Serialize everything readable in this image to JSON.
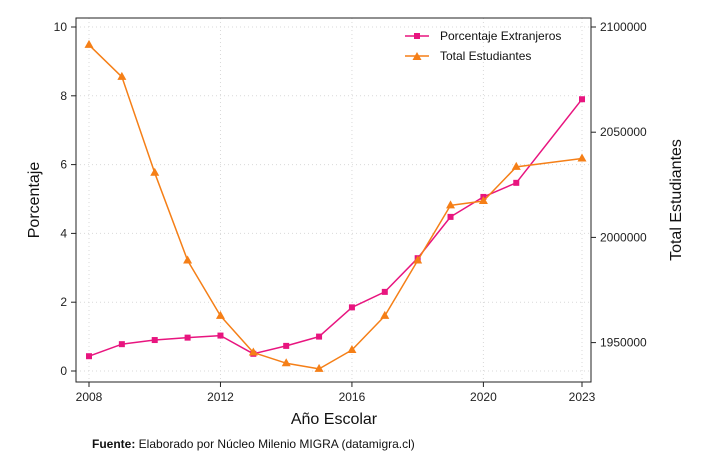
{
  "chart_data": {
    "type": "line",
    "xlabel": "Año Escolar",
    "ylabel": "Porcentaje",
    "y2label": "Total Estudiantes",
    "x_ticks": [
      "2008",
      "2012",
      "2016",
      "2020",
      "2023"
    ],
    "y_ticks": [
      "0",
      "2",
      "4",
      "6",
      "8",
      "10"
    ],
    "y2_ticks": [
      "1950000",
      "2000000",
      "2050000",
      "2100000"
    ],
    "xlim": [
      2008,
      2023
    ],
    "ylim": [
      0,
      10
    ],
    "y2lim": [
      1936500,
      2100000
    ],
    "grid": true,
    "legend_position": "top-right",
    "x": [
      2008,
      2009,
      2010,
      2011,
      2012,
      2013,
      2014,
      2015,
      2016,
      2017,
      2018,
      2019,
      2020,
      2021,
      2023
    ],
    "series": [
      {
        "name": "Porcentaje Extranjeros",
        "axis": "left",
        "color": "#e8157f",
        "marker": "square",
        "values": [
          0.43,
          0.78,
          0.9,
          0.97,
          1.03,
          0.5,
          0.73,
          1.0,
          1.85,
          2.3,
          3.28,
          4.48,
          5.06,
          5.47,
          7.9
        ]
      },
      {
        "name": "Total Estudiantes",
        "axis": "right",
        "color": "#f57f17",
        "marker": "triangle",
        "values": [
          2091500,
          2076300,
          2030700,
          1989000,
          1962700,
          1945300,
          1940200,
          1937500,
          1946500,
          1962700,
          1989000,
          2015200,
          2017300,
          2033500,
          2037500
        ]
      }
    ]
  },
  "source": {
    "label": "Fuente:",
    "text": " Elaborado por Núcleo Milenio MIGRA (datamigra.cl)"
  }
}
